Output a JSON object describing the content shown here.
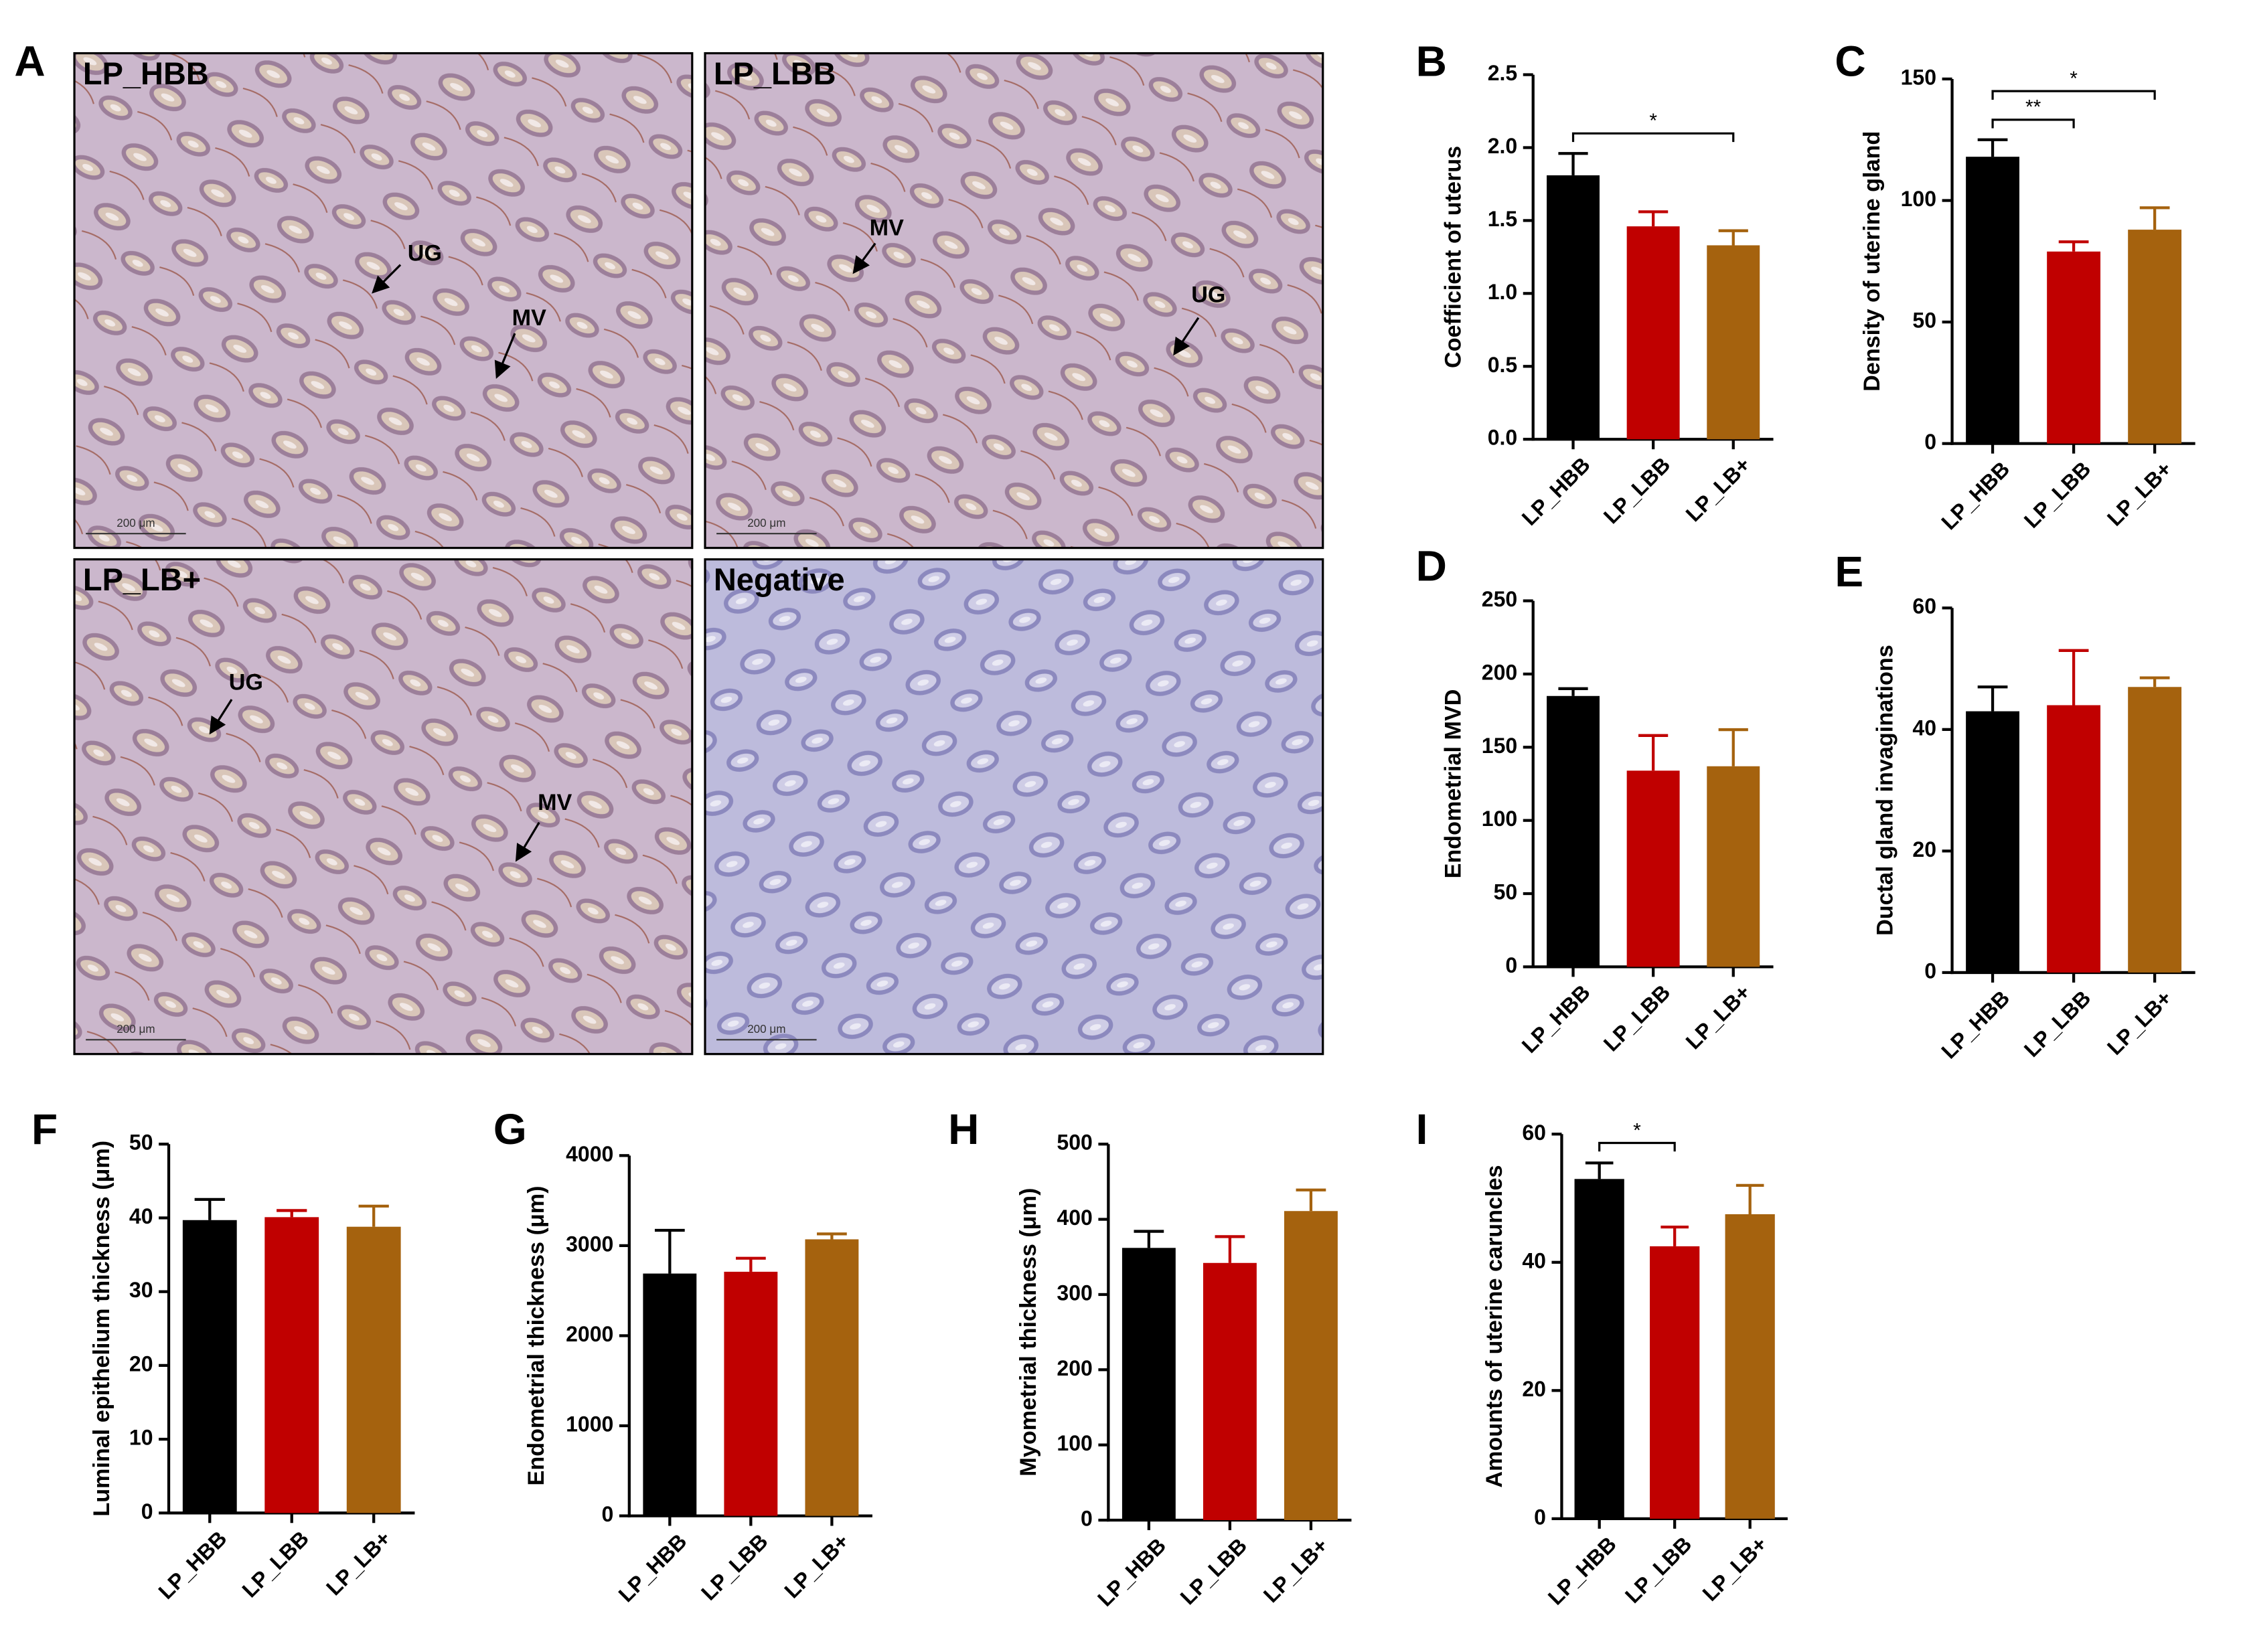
{
  "panel_a": {
    "label": "A",
    "images": [
      {
        "title": "LP_HBB",
        "markers": [
          "UG",
          "MV"
        ],
        "scale_bar": "200 μm"
      },
      {
        "title": "LP_LBB",
        "markers": [
          "MV",
          "UG"
        ],
        "scale_bar": "200 μm"
      },
      {
        "title": "LP_LB+",
        "markers": [
          "UG",
          "MV"
        ],
        "scale_bar": "200 μm"
      },
      {
        "title": "Negative",
        "scale_bar": "200 μm"
      }
    ]
  },
  "chart_data": [
    {
      "type": "bar",
      "panel_label": "B",
      "y_label": "Coefficient of uterus",
      "categories": [
        "LP_HBB",
        "LP_LBB",
        "LP_LB+"
      ],
      "values": [
        1.81,
        1.46,
        1.33
      ],
      "errors": [
        0.15,
        0.1,
        0.1
      ],
      "colors": [
        "#000000",
        "#c00000",
        "#a5620e"
      ],
      "ylim": [
        0,
        2.5
      ],
      "yticks": [
        {
          "value": 0,
          "label": "0.0"
        },
        0.5,
        {
          "value": 1,
          "label": "1.0"
        },
        1.5,
        {
          "value": 2,
          "label": "2.0"
        },
        2.5
      ],
      "annotations": [
        {
          "label": "*",
          "between": [
            "LP_HBB",
            "LP_LB+"
          ]
        }
      ]
    },
    {
      "type": "bar",
      "panel_label": "C",
      "y_label": "Density of uterine gland",
      "categories": [
        "LP_HBB",
        "LP_LBB",
        "LP_LB+"
      ],
      "values": [
        118,
        79,
        88
      ],
      "errors": [
        7,
        4,
        9
      ],
      "colors": [
        "#000000",
        "#c00000",
        "#a5620e"
      ],
      "ylim": [
        0,
        150
      ],
      "yticks": [
        0,
        50,
        100,
        150
      ],
      "annotations": [
        {
          "label": "**",
          "between": [
            "LP_HBB",
            "LP_LBB"
          ]
        },
        {
          "label": "*",
          "between": [
            "LP_HBB",
            "LP_LB+"
          ]
        }
      ]
    },
    {
      "type": "bar",
      "panel_label": "D",
      "y_label": "Endometrial MVD",
      "categories": [
        "LP_HBB",
        "LP_LBB",
        "LP_LB+"
      ],
      "values": [
        185,
        134,
        137
      ],
      "errors": [
        5,
        24,
        25
      ],
      "colors": [
        "#000000",
        "#c00000",
        "#a5620e"
      ],
      "ylim": [
        0,
        250
      ],
      "yticks": [
        0,
        50,
        100,
        150,
        200,
        250
      ]
    },
    {
      "type": "bar",
      "panel_label": "E",
      "y_label": "Ductal gland invaginations",
      "categories": [
        "LP_HBB",
        "LP_LBB",
        "LP_LB+"
      ],
      "values": [
        43,
        44,
        47
      ],
      "errors": [
        4,
        9,
        1.5
      ],
      "colors": [
        "#000000",
        "#c00000",
        "#a5620e"
      ],
      "ylim": [
        0,
        60
      ],
      "yticks": [
        0,
        20,
        40,
        60
      ]
    },
    {
      "type": "bar",
      "panel_label": "F",
      "y_label": "Luminal epithelium thickness (μm)",
      "categories": [
        "LP_HBB",
        "LP_LBB",
        "LP_LB+"
      ],
      "values": [
        39.7,
        40.1,
        38.8
      ],
      "errors": [
        2.8,
        0.9,
        2.8
      ],
      "colors": [
        "#000000",
        "#c00000",
        "#a5620e"
      ],
      "ylim": [
        0,
        50
      ],
      "yticks": [
        0,
        10,
        20,
        30,
        40,
        50
      ]
    },
    {
      "type": "bar",
      "panel_label": "G",
      "y_label": "Endometrial thickness (μm)",
      "categories": [
        "LP_HBB",
        "LP_LBB",
        "LP_LB+"
      ],
      "values": [
        2690,
        2710,
        3070
      ],
      "errors": [
        480,
        150,
        60
      ],
      "colors": [
        "#000000",
        "#c00000",
        "#a5620e"
      ],
      "ylim": [
        0,
        4000
      ],
      "yticks": [
        0,
        1000,
        2000,
        3000,
        4000
      ]
    },
    {
      "type": "bar",
      "panel_label": "H",
      "y_label": "Myometrial thickness (μm)",
      "categories": [
        "LP_HBB",
        "LP_LBB",
        "LP_LB+"
      ],
      "values": [
        362,
        342,
        411
      ],
      "errors": [
        22,
        35,
        28
      ],
      "colors": [
        "#000000",
        "#c00000",
        "#a5620e"
      ],
      "ylim": [
        0,
        500
      ],
      "yticks": [
        0,
        100,
        200,
        300,
        400,
        500
      ]
    },
    {
      "type": "bar",
      "panel_label": "I",
      "y_label": "Amounts of uterine caruncles",
      "categories": [
        "LP_HBB",
        "LP_LBB",
        "LP_LB+"
      ],
      "values": [
        53,
        42.5,
        47.5
      ],
      "errors": [
        2.5,
        3,
        4.5
      ],
      "colors": [
        "#000000",
        "#c00000",
        "#a5620e"
      ],
      "ylim": [
        0,
        60
      ],
      "yticks": [
        0,
        20,
        40,
        60
      ],
      "annotations": [
        {
          "label": "*",
          "between": [
            "LP_HBB",
            "LP_LBB"
          ]
        }
      ]
    }
  ]
}
